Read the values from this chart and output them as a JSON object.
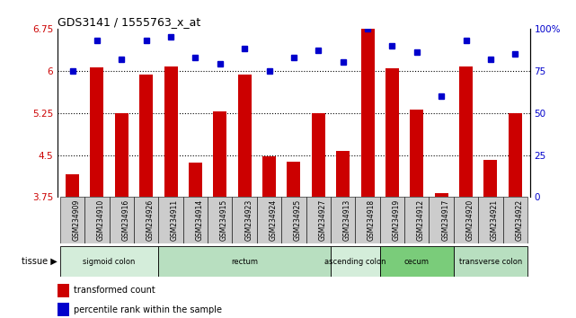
{
  "title": "GDS3141 / 1555763_x_at",
  "samples": [
    "GSM234909",
    "GSM234910",
    "GSM234916",
    "GSM234926",
    "GSM234911",
    "GSM234914",
    "GSM234915",
    "GSM234923",
    "GSM234924",
    "GSM234925",
    "GSM234927",
    "GSM234913",
    "GSM234918",
    "GSM234919",
    "GSM234912",
    "GSM234917",
    "GSM234920",
    "GSM234921",
    "GSM234922"
  ],
  "red_values": [
    4.15,
    6.06,
    5.25,
    5.93,
    6.07,
    4.37,
    5.28,
    5.93,
    4.47,
    4.38,
    5.25,
    4.58,
    6.75,
    6.04,
    5.31,
    3.82,
    6.07,
    4.42,
    5.25
  ],
  "blue_values": [
    75,
    93,
    82,
    93,
    95,
    83,
    79,
    88,
    75,
    83,
    87,
    80,
    100,
    90,
    86,
    60,
    93,
    82,
    85
  ],
  "ylim_left": [
    3.75,
    6.75
  ],
  "ylim_right": [
    0,
    100
  ],
  "yticks_left": [
    3.75,
    4.5,
    5.25,
    6.0,
    6.75
  ],
  "yticks_right": [
    0,
    25,
    50,
    75,
    100
  ],
  "ytick_labels_left": [
    "3.75",
    "4.5",
    "5.25",
    "6",
    "6.75"
  ],
  "ytick_labels_right": [
    "0",
    "25",
    "50",
    "75",
    "100%"
  ],
  "hlines": [
    4.5,
    5.25,
    6.0
  ],
  "tissue_groups": [
    {
      "label": "sigmoid colon",
      "start": 0,
      "end": 4,
      "color": "#d4edda"
    },
    {
      "label": "rectum",
      "start": 4,
      "end": 11,
      "color": "#b8dfc0"
    },
    {
      "label": "ascending colon",
      "start": 11,
      "end": 13,
      "color": "#d4edda"
    },
    {
      "label": "cecum",
      "start": 13,
      "end": 16,
      "color": "#7acc7a"
    },
    {
      "label": "transverse colon",
      "start": 16,
      "end": 19,
      "color": "#b8dfc0"
    }
  ],
  "bar_color": "#cc0000",
  "dot_color": "#0000cc",
  "bg_color": "#ffffff",
  "tick_bg_color": "#cccccc",
  "bar_width": 0.55
}
